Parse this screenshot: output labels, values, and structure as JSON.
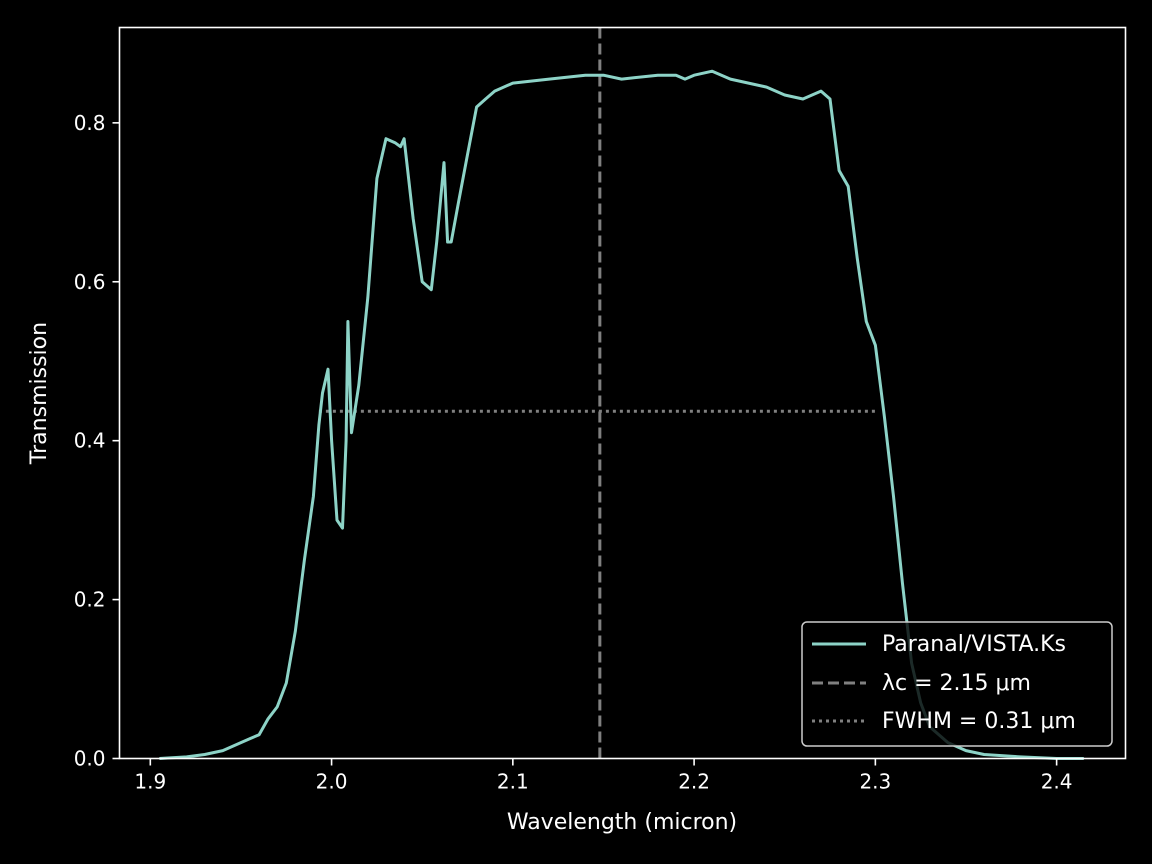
{
  "chart_data": {
    "type": "line",
    "title": "",
    "xlabel": "Wavelength (micron)",
    "ylabel": "Transmission",
    "xlim": [
      1.883,
      2.438
    ],
    "ylim": [
      0.0,
      0.92
    ],
    "xticks": [
      1.9,
      2.0,
      2.1,
      2.2,
      2.3,
      2.4
    ],
    "xtick_labels": [
      "1.9",
      "2.0",
      "2.1",
      "2.2",
      "2.3",
      "2.4"
    ],
    "yticks": [
      0.0,
      0.2,
      0.4,
      0.6,
      0.8
    ],
    "ytick_labels": [
      "0.0",
      "0.2",
      "0.4",
      "0.6",
      "0.8"
    ],
    "grid": false,
    "legend_position": "lower-right",
    "colors": {
      "background": "#000000",
      "series": "#8dd3c7",
      "reference": "#808080",
      "axes": "#ffffff"
    },
    "series": [
      {
        "name": "Paranal/VISTA.Ks",
        "x": [
          1.905,
          1.92,
          1.93,
          1.94,
          1.95,
          1.955,
          1.96,
          1.965,
          1.97,
          1.975,
          1.98,
          1.985,
          1.99,
          1.993,
          1.995,
          1.998,
          2.0,
          2.003,
          2.006,
          2.008,
          2.009,
          2.011,
          2.015,
          2.02,
          2.025,
          2.028,
          2.03,
          2.035,
          2.038,
          2.04,
          2.045,
          2.05,
          2.055,
          2.058,
          2.062,
          2.064,
          2.066,
          2.07,
          2.075,
          2.08,
          2.085,
          2.09,
          2.1,
          2.12,
          2.14,
          2.15,
          2.16,
          2.18,
          2.19,
          2.195,
          2.2,
          2.21,
          2.22,
          2.24,
          2.25,
          2.26,
          2.27,
          2.275,
          2.28,
          2.285,
          2.29,
          2.295,
          2.3,
          2.305,
          2.31,
          2.315,
          2.32,
          2.325,
          2.33,
          2.34,
          2.35,
          2.36,
          2.38,
          2.4,
          2.415
        ],
        "y": [
          0.0,
          0.002,
          0.005,
          0.01,
          0.02,
          0.025,
          0.03,
          0.05,
          0.065,
          0.095,
          0.16,
          0.25,
          0.33,
          0.42,
          0.46,
          0.49,
          0.4,
          0.3,
          0.29,
          0.4,
          0.55,
          0.41,
          0.47,
          0.58,
          0.73,
          0.76,
          0.78,
          0.775,
          0.77,
          0.78,
          0.68,
          0.6,
          0.59,
          0.65,
          0.75,
          0.65,
          0.65,
          0.7,
          0.76,
          0.82,
          0.83,
          0.84,
          0.85,
          0.855,
          0.86,
          0.86,
          0.855,
          0.86,
          0.86,
          0.855,
          0.86,
          0.865,
          0.855,
          0.845,
          0.835,
          0.83,
          0.84,
          0.83,
          0.74,
          0.72,
          0.63,
          0.55,
          0.52,
          0.43,
          0.33,
          0.22,
          0.12,
          0.07,
          0.04,
          0.02,
          0.01,
          0.005,
          0.002,
          0.0,
          0.0
        ]
      }
    ],
    "reference_lines": [
      {
        "name": "λc = 2.15 μm",
        "orientation": "vertical",
        "x": 2.148,
        "style": "dashed"
      },
      {
        "name": "FWHM = 0.31 μm",
        "orientation": "horizontal",
        "y": 0.437,
        "x_range": [
          1.993,
          2.3
        ],
        "style": "dotted"
      }
    ],
    "legend": {
      "entries": [
        {
          "label": "Paranal/VISTA.Ks",
          "style": "solid"
        },
        {
          "label": "λc = 2.15 μm",
          "style": "dashed"
        },
        {
          "label": "FWHM = 0.31 μm",
          "style": "dotted"
        }
      ]
    }
  }
}
